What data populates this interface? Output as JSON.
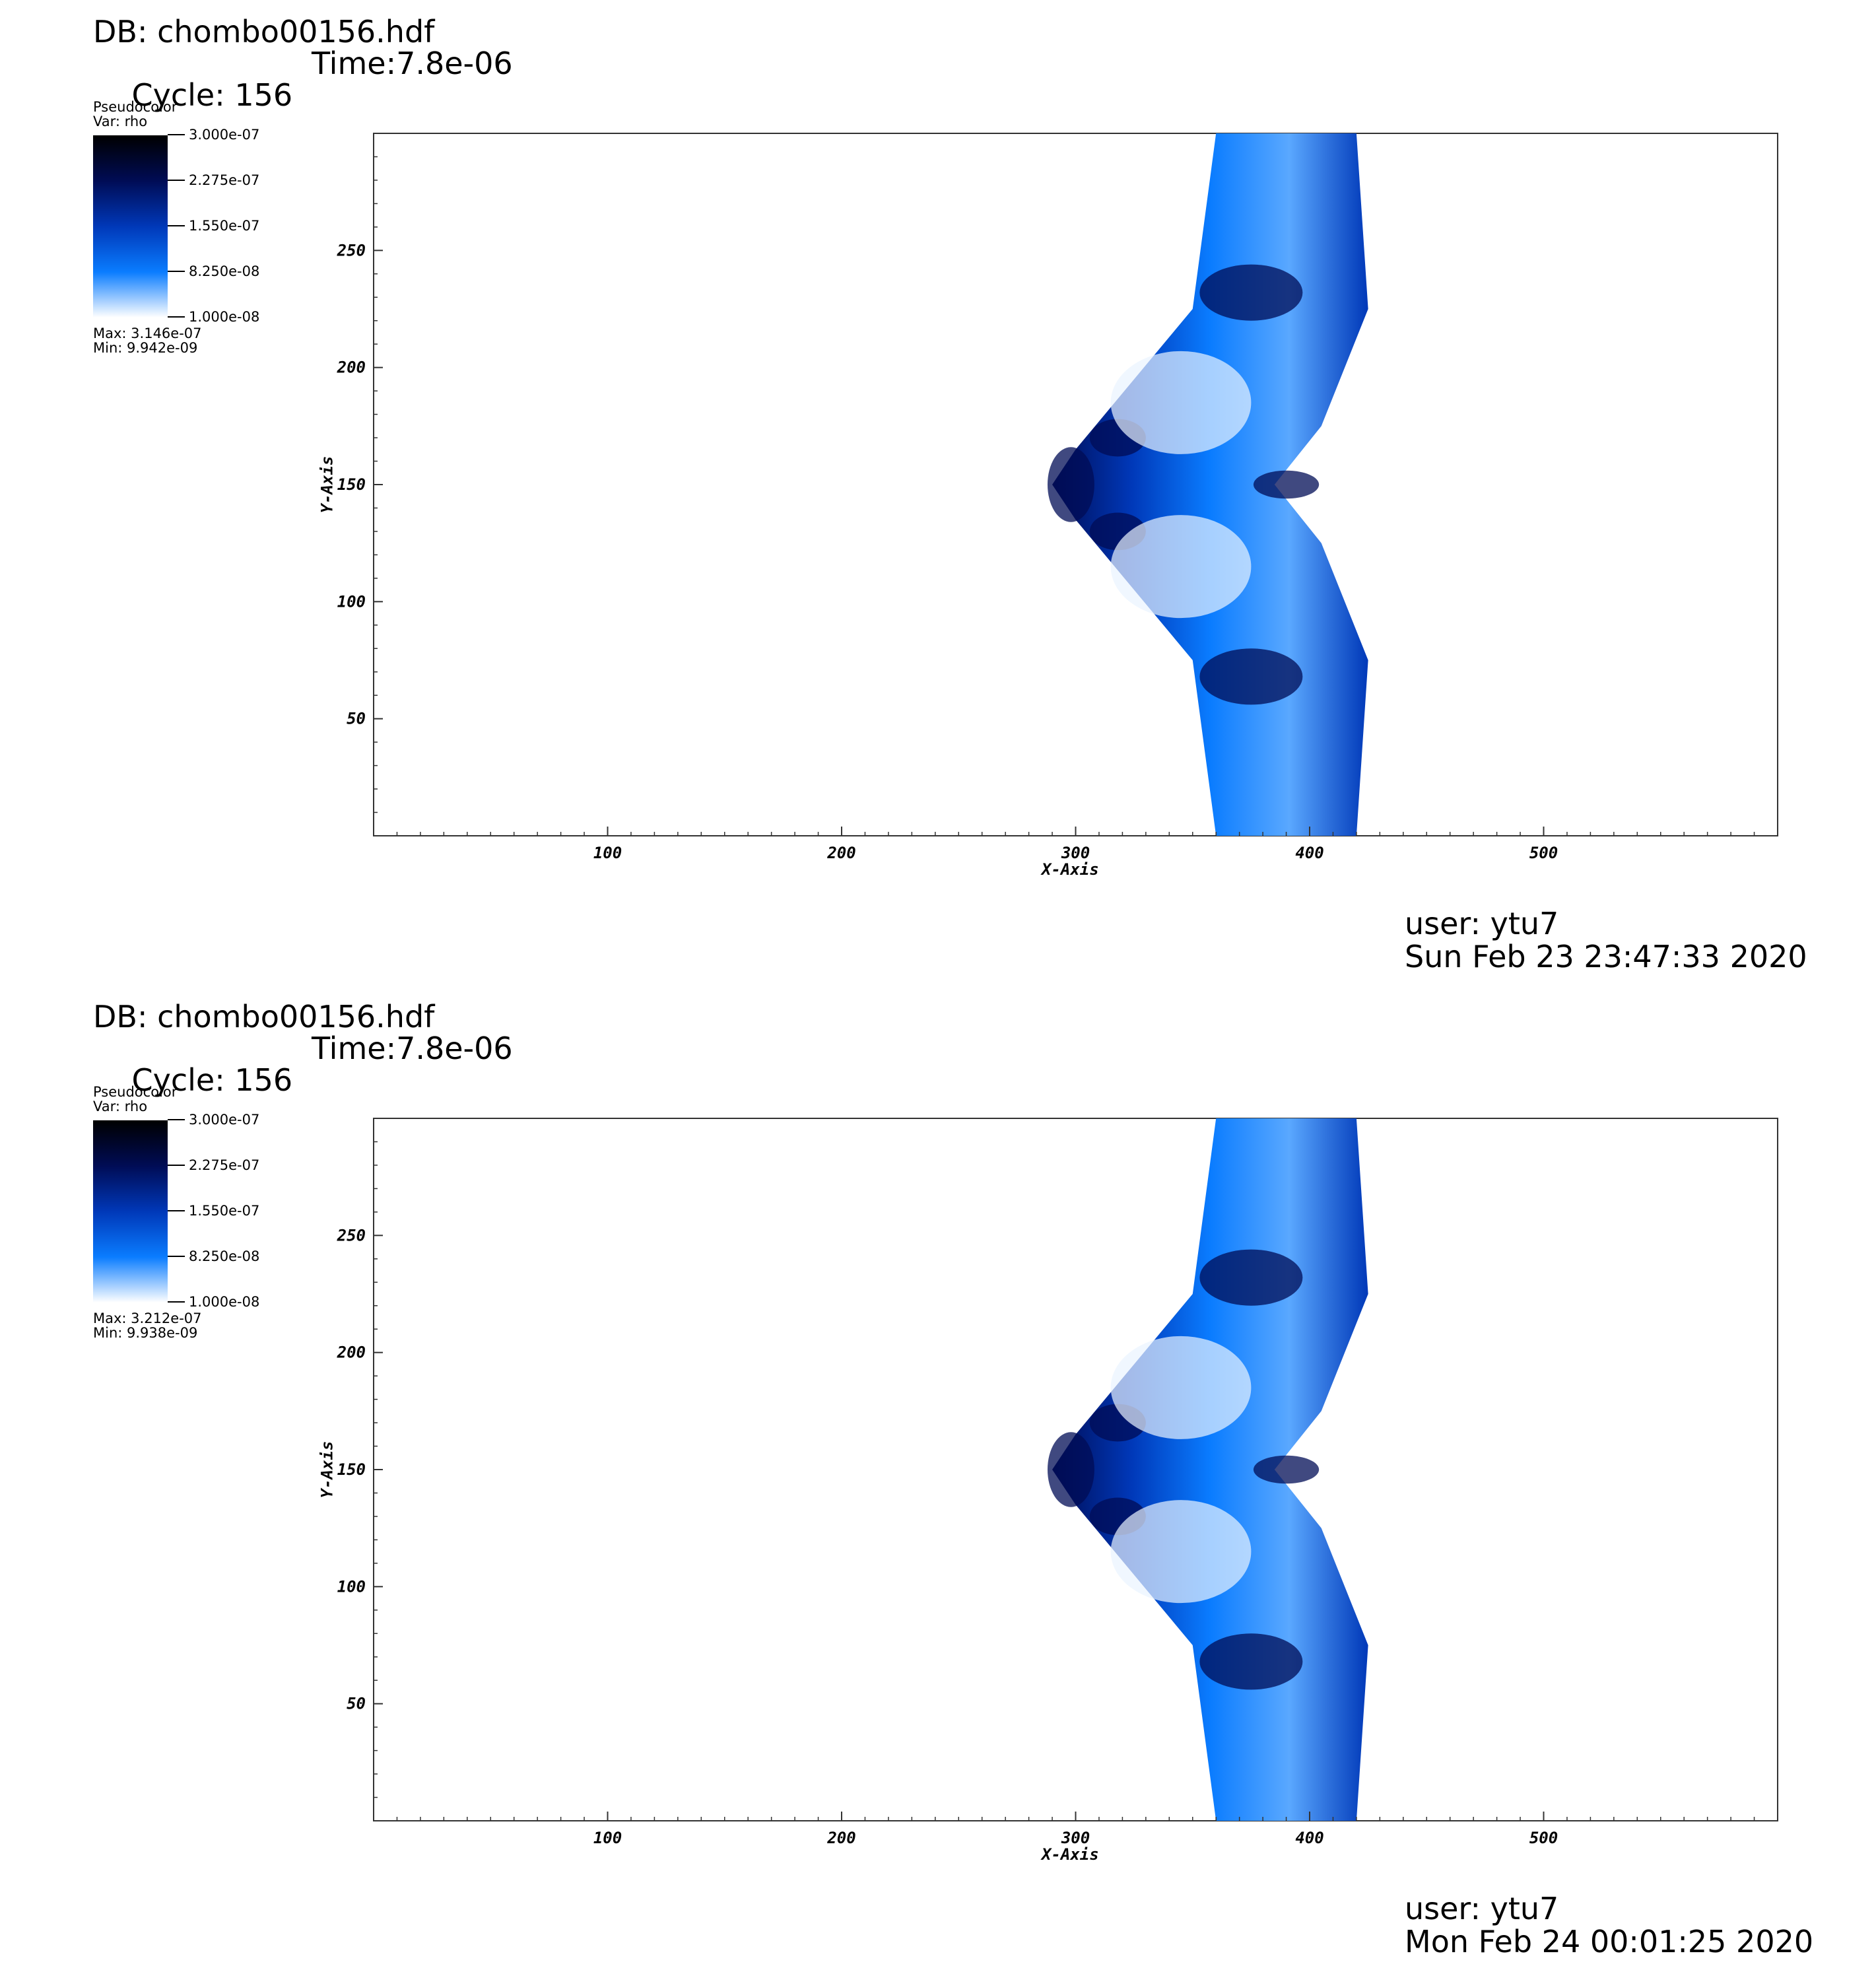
{
  "panels": [
    {
      "db": "DB: chombo00156.hdf",
      "cycle": "Cycle: 156",
      "time": "Time:7.8e-06",
      "legend": {
        "plot_type": "Pseudocolor",
        "var": "Var: rho",
        "ticks": [
          "3.000e-07",
          "2.275e-07",
          "1.550e-07",
          "8.250e-08",
          "1.000e-08"
        ],
        "max": "Max:  3.146e-07",
        "min": "Min:  9.942e-09"
      },
      "user": "user: ytu7",
      "date": "Sun Feb 23 23:47:33 2020"
    },
    {
      "db": "DB: chombo00156.hdf",
      "cycle": "Cycle: 156",
      "time": "Time:7.8e-06",
      "legend": {
        "plot_type": "Pseudocolor",
        "var": "Var: rho",
        "ticks": [
          "3.000e-07",
          "2.275e-07",
          "1.550e-07",
          "8.250e-08",
          "1.000e-08"
        ],
        "max": "Max:  3.212e-07",
        "min": "Min:  9.938e-09"
      },
      "user": "user: ytu7",
      "date": "Mon Feb 24 00:01:25 2020"
    }
  ],
  "chart_data": {
    "type": "heatmap",
    "variable": "rho",
    "colormap": [
      "#ffffff",
      "#0a7cff",
      "#0038b8",
      "#000c55",
      "#000000"
    ],
    "xlabel": "X-Axis",
    "ylabel": "Y-Axis",
    "xlim": [
      0,
      600
    ],
    "ylim": [
      0,
      300
    ],
    "xticks": [
      "100",
      "200",
      "300",
      "400",
      "500"
    ],
    "yticks": [
      "50",
      "100",
      "150",
      "200",
      "250"
    ],
    "xtick_values": [
      100,
      200,
      300,
      400,
      500
    ],
    "ytick_values": [
      50,
      100,
      150,
      200,
      250
    ],
    "color_range": [
      1e-08,
      3e-07
    ],
    "outline": [
      [
        360,
        0
      ],
      [
        420,
        0
      ],
      [
        425,
        75
      ],
      [
        405,
        125
      ],
      [
        385,
        150
      ],
      [
        405,
        175
      ],
      [
        425,
        225
      ],
      [
        420,
        300
      ],
      [
        360,
        300
      ],
      [
        350,
        225
      ],
      [
        300,
        165
      ],
      [
        290,
        150
      ],
      [
        300,
        135
      ],
      [
        350,
        75
      ]
    ]
  }
}
